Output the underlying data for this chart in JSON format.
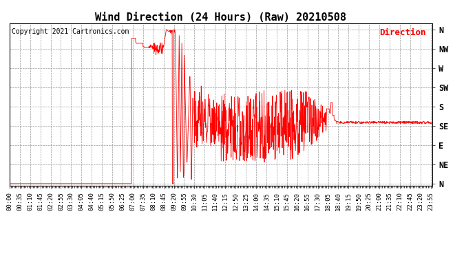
{
  "title": "Wind Direction (24 Hours) (Raw) 20210508",
  "copyright": "Copyright 2021 Cartronics.com",
  "legend_label": "Direction",
  "legend_color": "#ff0000",
  "line_color": "#ff0000",
  "background_color": "#ffffff",
  "grid_color": "#999999",
  "ytick_labels": [
    "N",
    "NE",
    "E",
    "SE",
    "S",
    "SW",
    "W",
    "NW",
    "N"
  ],
  "ytick_values": [
    0,
    45,
    90,
    135,
    180,
    225,
    270,
    315,
    360
  ],
  "ylim": [
    -5,
    375
  ],
  "title_fontsize": 11,
  "tick_fontsize": 6.5,
  "copyright_fontsize": 7,
  "legend_fontsize": 9
}
